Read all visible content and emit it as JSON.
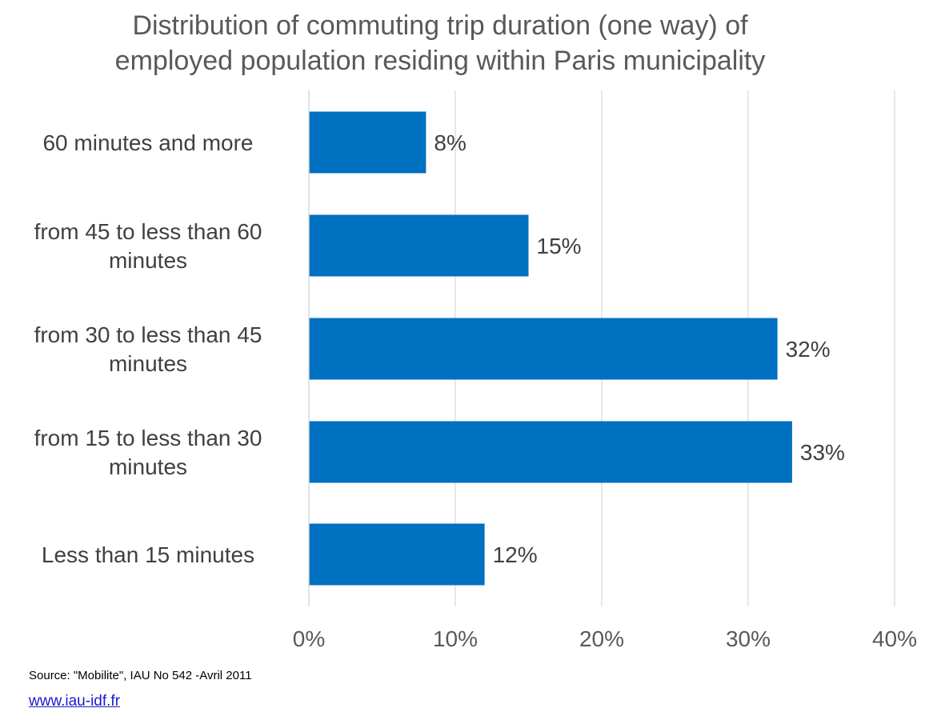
{
  "chart_data": {
    "type": "bar",
    "orientation": "horizontal",
    "title_lines": [
      "Distribution of commuting trip duration (one way) of",
      "employed population residing within Paris municipality"
    ],
    "categories": [
      "60 minutes and more",
      "from  45 to less than 60 minutes",
      "from 30 to less than 45 minutes",
      "from 15 to less than 30 minutes",
      "Less than 15 minutes"
    ],
    "category_lines": [
      [
        "60 minutes and more"
      ],
      [
        "from  45 to less than 60",
        "minutes"
      ],
      [
        "from 30 to less than 45",
        "minutes"
      ],
      [
        "from 15 to less than 30",
        "minutes"
      ],
      [
        "Less than 15 minutes"
      ]
    ],
    "values": [
      8,
      15,
      32,
      33,
      12
    ],
    "data_labels": [
      "8%",
      "15%",
      "32%",
      "33%",
      "12%"
    ],
    "xlim": [
      0,
      40
    ],
    "x_ticks": [
      0,
      10,
      20,
      30,
      40
    ],
    "x_tick_labels": [
      "0%",
      "10%",
      "20%",
      "30%",
      "40%"
    ],
    "grid": "vertical",
    "bar_color": "#0070c0",
    "grid_color": "#d9d9d9"
  },
  "footer": {
    "source": "Source: \"Mobilite\", IAU No 542 -Avril 2011",
    "link": "www.iau-idf.fr"
  }
}
